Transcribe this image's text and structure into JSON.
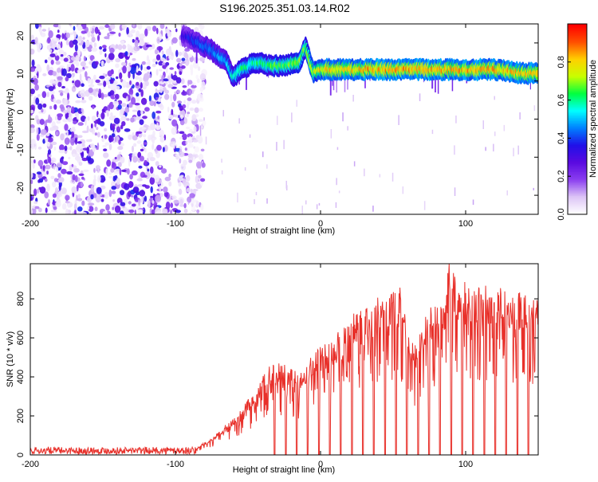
{
  "title": "S196.2025.351.03.14.R02",
  "chart_data": [
    {
      "type": "heatmap",
      "xlabel": "Height of straight line (km)",
      "ylabel": "Frequency (Hz)",
      "xlim": [
        -200,
        150
      ],
      "ylim": [
        -25,
        25
      ],
      "xticks": [
        -200,
        -100,
        0,
        100
      ],
      "yticks": [
        20,
        10,
        0,
        -10,
        -20
      ],
      "colorbar": {
        "label": "Normalized spectral amplitude",
        "range": [
          0,
          1
        ],
        "ticks": [
          0.0,
          0.2,
          0.4,
          0.6,
          0.8
        ],
        "colors": [
          "#ffffff",
          "#dcc4f6",
          "#8a3ef0",
          "#5a0ae0",
          "#2010e8",
          "#0080ff",
          "#00ffff",
          "#00ff40",
          "#c8ff00",
          "#ffd000",
          "#ff5000",
          "#ff0000"
        ]
      },
      "noise_region_x": [
        -200,
        -85
      ],
      "noise_intensity": 0.2,
      "ridge": {
        "x": [
          -95,
          -85,
          -75,
          -65,
          -60,
          -55,
          -45,
          -35,
          -25,
          -15,
          -10,
          -5,
          0,
          20,
          40,
          60,
          80,
          100,
          120,
          140,
          150
        ],
        "y": [
          22,
          20,
          18,
          15,
          11,
          13,
          15,
          14,
          14,
          15,
          19,
          12,
          13,
          13,
          13,
          13,
          13,
          13,
          13,
          12,
          12
        ],
        "amplitude": [
          0.35,
          0.45,
          0.5,
          0.55,
          0.6,
          0.65,
          0.65,
          0.7,
          0.7,
          0.75,
          0.7,
          0.8,
          0.85,
          0.88,
          0.9,
          0.92,
          0.92,
          0.9,
          0.9,
          0.88,
          0.88
        ]
      },
      "grid": false
    },
    {
      "type": "line",
      "xlabel": "Height of straight line (km)",
      "ylabel": "SNR (10 * v/v)",
      "xlim": [
        -200,
        150
      ],
      "ylim": [
        0,
        980
      ],
      "xticks": [
        -200,
        -100,
        0,
        100
      ],
      "yticks": [
        0,
        200,
        400,
        600,
        800
      ],
      "series": [
        {
          "color": "#e8302a",
          "x": [
            -200,
            -100,
            -85,
            -75,
            -65,
            -55,
            -45,
            -35,
            -25,
            -15,
            -5,
            5,
            15,
            25,
            35,
            45,
            55,
            60,
            65,
            75,
            85,
            88,
            95,
            105,
            115,
            125,
            135,
            150
          ],
          "y": [
            20,
            25,
            40,
            80,
            150,
            220,
            320,
            450,
            450,
            400,
            500,
            560,
            620,
            730,
            760,
            790,
            820,
            600,
            540,
            750,
            800,
            960,
            850,
            840,
            830,
            830,
            800,
            770
          ]
        }
      ],
      "drop_spacing_km": 7.6,
      "drop_start_km": -32,
      "noise_floor": 20,
      "grid": false
    }
  ]
}
